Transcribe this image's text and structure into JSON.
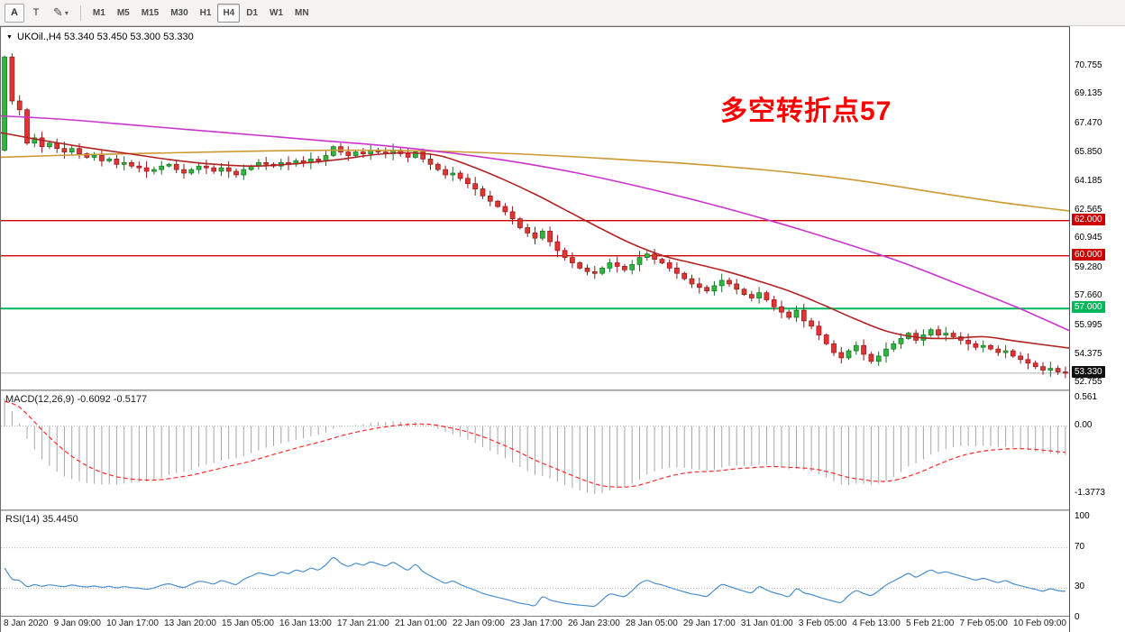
{
  "toolbar": {
    "font_tool_label": "A",
    "text_cursor_label": "T",
    "timeframes": [
      "M1",
      "M5",
      "M15",
      "M30",
      "H1",
      "H4",
      "D1",
      "W1",
      "MN"
    ],
    "active_timeframe": "H4"
  },
  "icons": {
    "pencil": "✎",
    "dropdown_caret": "▾",
    "title_triangle": "▼"
  },
  "title": {
    "symbol_period": "UKOil.,H4",
    "ohlc": "53.340 53.450 53.300 53.330"
  },
  "annotation": {
    "text": "多空转折点57",
    "color": "#ff0000"
  },
  "indicators": {
    "macd": {
      "name": "MACD(12,26,9)",
      "value_main": "-0.6092",
      "value_signal": "-0.5177",
      "y_tick_labels": [
        "0.561",
        "0.00",
        "-1.3773"
      ]
    },
    "rsi": {
      "name": "RSI(14)",
      "value": "35.4450",
      "y_tick_labels": [
        "100",
        "70",
        "30",
        "0"
      ]
    }
  },
  "price_levels": [
    {
      "label": "62.000",
      "value": 62.0,
      "color": "#cc0000"
    },
    {
      "label": "60.000",
      "value": 60.0,
      "color": "#cc0000"
    },
    {
      "label": "57.000",
      "value": 57.0,
      "color": "#00b75c"
    }
  ],
  "current_price": {
    "label": "53.330",
    "value": 53.33,
    "color": "#111111"
  },
  "colors": {
    "up": "#2db83d",
    "up_stroke": "#156e23",
    "down": "#e33434",
    "down_stroke": "#8e1616",
    "macd_hist": "#a6a6a6",
    "macd_signal": "#ff2a2a",
    "rsi_line": "#4a8fce",
    "current_line": "#b3b3b3",
    "grid_dotted": "#b8b8b8"
  },
  "chart_data": {
    "type": "candlestick",
    "symbol": "UKOil",
    "period": "H4",
    "ylim": [
      52.4,
      73.0
    ],
    "y_tick_labels": [
      "70.755",
      "69.135",
      "67.470",
      "65.850",
      "64.185",
      "62.565",
      "60.945",
      "59.280",
      "57.660",
      "55.995",
      "54.375",
      "52.755"
    ],
    "x_labels": [
      "8 Jan 2020",
      "9 Jan 09:00",
      "10 Jan 17:00",
      "13 Jan 20:00",
      "15 Jan 05:00",
      "16 Jan 13:00",
      "17 Jan 21:00",
      "21 Jan 01:00",
      "22 Jan 09:00",
      "23 Jan 17:00",
      "26 Jan 23:00",
      "28 Jan 05:00",
      "29 Jan 17:00",
      "31 Jan 01:00",
      "3 Feb 05:00",
      "4 Feb 13:00",
      "5 Feb 21:00",
      "7 Feb 05:00",
      "10 Feb 09:00"
    ],
    "first_open": 66.0,
    "closes": [
      71.3,
      68.8,
      68.3,
      66.4,
      66.7,
      66.2,
      66.4,
      66.1,
      65.9,
      66.1,
      65.8,
      65.6,
      65.7,
      65.4,
      65.5,
      65.2,
      65.3,
      65.1,
      65.0,
      64.8,
      64.9,
      65.1,
      65.2,
      64.9,
      64.7,
      64.9,
      65.1,
      65.0,
      64.8,
      65.0,
      64.8,
      64.6,
      64.9,
      65.1,
      65.3,
      65.2,
      65.1,
      65.3,
      65.2,
      65.4,
      65.3,
      65.5,
      65.4,
      65.7,
      66.2,
      65.9,
      65.7,
      65.9,
      65.8,
      66.0,
      65.9,
      65.8,
      66.0,
      65.8,
      65.6,
      65.9,
      65.5,
      65.2,
      64.9,
      64.6,
      64.7,
      64.4,
      64.1,
      63.8,
      63.4,
      63.1,
      62.8,
      62.5,
      62.1,
      61.6,
      61.3,
      61.0,
      61.4,
      60.8,
      60.3,
      59.9,
      59.6,
      59.3,
      59.1,
      59.0,
      59.3,
      59.6,
      59.4,
      59.2,
      59.5,
      59.9,
      60.1,
      59.8,
      59.6,
      59.3,
      59.0,
      58.7,
      58.4,
      58.2,
      58.0,
      58.3,
      58.6,
      58.4,
      58.1,
      57.8,
      57.6,
      57.9,
      57.5,
      57.1,
      56.8,
      56.5,
      56.9,
      56.3,
      56.0,
      55.5,
      55.0,
      54.5,
      54.2,
      54.6,
      54.9,
      54.4,
      54.0,
      54.3,
      54.7,
      55.0,
      55.3,
      55.6,
      55.2,
      55.5,
      55.8,
      55.5,
      55.6,
      55.4,
      55.2,
      55.0,
      54.8,
      54.9,
      54.7,
      54.5,
      54.6,
      54.3,
      54.1,
      53.9,
      53.7,
      53.5,
      53.6,
      53.4,
      53.33
    ],
    "overlays": {
      "ma_fast": {
        "color": "#b22222",
        "points": [
          [
            0,
            67.0
          ],
          [
            0.04,
            66.55
          ],
          [
            0.08,
            66.15
          ],
          [
            0.12,
            65.8
          ],
          [
            0.16,
            65.45
          ],
          [
            0.2,
            65.2
          ],
          [
            0.24,
            65.1
          ],
          [
            0.28,
            65.25
          ],
          [
            0.32,
            65.5
          ],
          [
            0.35,
            65.75
          ],
          [
            0.38,
            65.85
          ],
          [
            0.41,
            65.7
          ],
          [
            0.44,
            65.1
          ],
          [
            0.47,
            64.35
          ],
          [
            0.5,
            63.5
          ],
          [
            0.53,
            62.55
          ],
          [
            0.56,
            61.6
          ],
          [
            0.59,
            60.7
          ],
          [
            0.62,
            60.0
          ],
          [
            0.65,
            59.55
          ],
          [
            0.68,
            59.1
          ],
          [
            0.71,
            58.55
          ],
          [
            0.74,
            57.95
          ],
          [
            0.77,
            57.2
          ],
          [
            0.8,
            56.4
          ],
          [
            0.83,
            55.7
          ],
          [
            0.86,
            55.35
          ],
          [
            0.89,
            55.3
          ],
          [
            0.92,
            55.4
          ],
          [
            0.95,
            55.15
          ],
          [
            1,
            54.75
          ]
        ]
      },
      "ma_mid": {
        "color": "#cc33cc",
        "points": [
          [
            0,
            67.95
          ],
          [
            0.06,
            67.75
          ],
          [
            0.12,
            67.45
          ],
          [
            0.18,
            67.15
          ],
          [
            0.24,
            66.85
          ],
          [
            0.3,
            66.55
          ],
          [
            0.36,
            66.25
          ],
          [
            0.42,
            65.85
          ],
          [
            0.48,
            65.35
          ],
          [
            0.54,
            64.7
          ],
          [
            0.6,
            63.9
          ],
          [
            0.66,
            63.0
          ],
          [
            0.72,
            62.0
          ],
          [
            0.78,
            60.9
          ],
          [
            0.84,
            59.7
          ],
          [
            0.9,
            58.3
          ],
          [
            0.95,
            57.1
          ],
          [
            1,
            55.75
          ]
        ]
      },
      "ma_slow": {
        "color": "#cc9933",
        "points": [
          [
            0,
            65.6
          ],
          [
            0.08,
            65.75
          ],
          [
            0.16,
            65.85
          ],
          [
            0.24,
            65.95
          ],
          [
            0.32,
            66.0
          ],
          [
            0.4,
            65.95
          ],
          [
            0.48,
            65.8
          ],
          [
            0.56,
            65.55
          ],
          [
            0.64,
            65.25
          ],
          [
            0.72,
            64.85
          ],
          [
            0.8,
            64.3
          ],
          [
            0.88,
            63.55
          ],
          [
            0.94,
            63.0
          ],
          [
            1,
            62.55
          ]
        ]
      }
    },
    "macd_params": [
      12,
      26,
      9
    ],
    "rsi_period": 14
  }
}
